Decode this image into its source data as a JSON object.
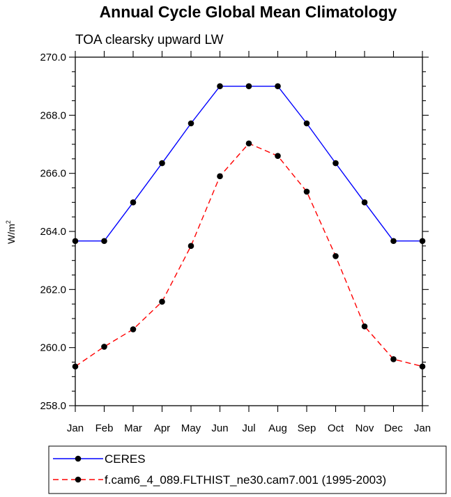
{
  "chart_data": {
    "type": "line",
    "title": "Annual Cycle Global Mean Climatology",
    "subtitle": "TOA clearsky upward LW",
    "ylabel": "W/m",
    "ylabel_superscript": "2",
    "xlabel": "",
    "categories": [
      "Jan",
      "Feb",
      "Mar",
      "Apr",
      "May",
      "Jun",
      "Jul",
      "Aug",
      "Sep",
      "Oct",
      "Nov",
      "Dec",
      "Jan"
    ],
    "ylim": [
      258.0,
      270.0
    ],
    "yticks": [
      "258.0",
      "260.0",
      "262.0",
      "264.0",
      "266.0",
      "268.0",
      "270.0"
    ],
    "grid": false,
    "legend_position": "bottom",
    "series": [
      {
        "name": "CERES",
        "color": "#0000ff",
        "dash": "solid",
        "marker": "circle",
        "values": [
          263.67,
          263.67,
          265.0,
          266.35,
          267.72,
          269.0,
          269.0,
          269.0,
          267.72,
          266.35,
          265.0,
          263.67,
          263.67
        ]
      },
      {
        "name": "f.cam6_4_089.FLTHIST_ne30.cam7.001 (1995-2003)",
        "color": "#ff0000",
        "dash": "dashed",
        "marker": "circle",
        "values": [
          259.35,
          260.03,
          260.63,
          261.58,
          263.5,
          265.9,
          267.03,
          266.6,
          265.37,
          263.15,
          260.73,
          259.6,
          259.35
        ]
      }
    ]
  }
}
